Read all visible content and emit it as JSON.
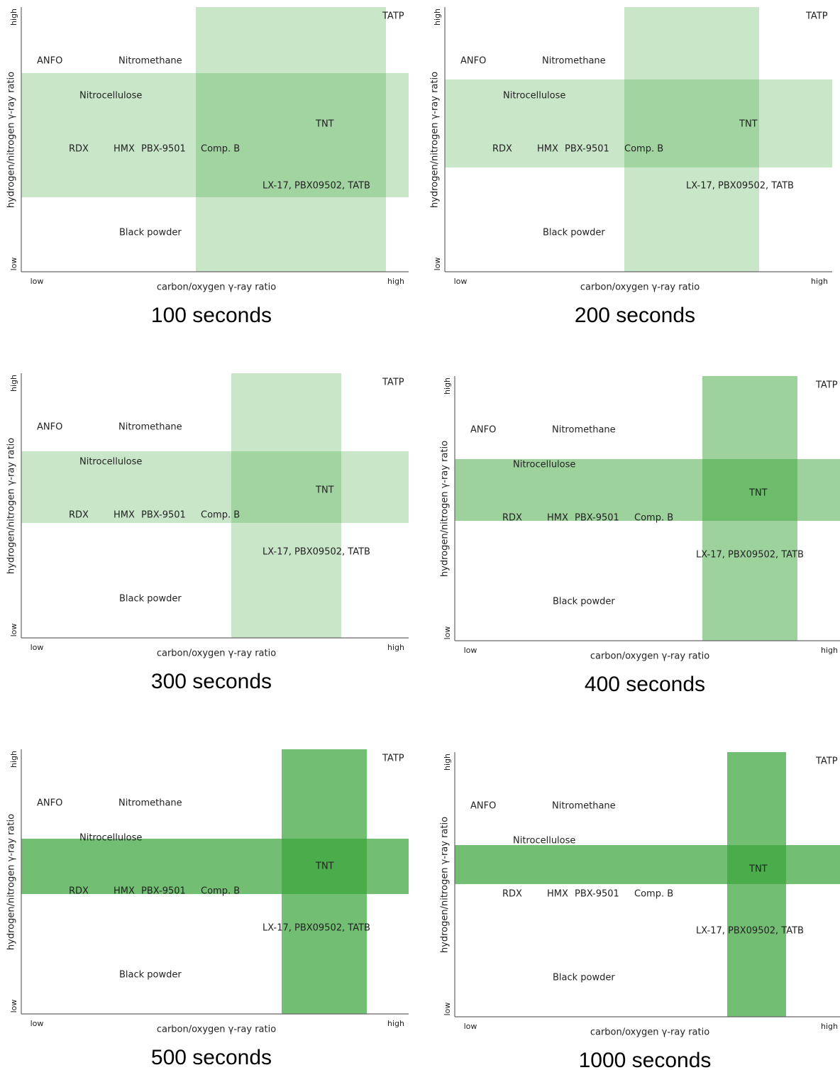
{
  "panels": [
    {
      "caption": "100 seconds",
      "x_axis_label": "carbon/oxygen γ-ray ratio",
      "y_axis_label": "hydrogen/nitrogen γ-ray ratio",
      "x_low": "low",
      "x_high": "high",
      "y_low": "low",
      "y_high": "high",
      "materials": [
        "ANFO",
        "Nitromethane",
        "Nitrocellulose",
        "RDX",
        "HMX",
        "PBX-9501",
        "Comp. B",
        "TNT",
        "LX-17, PBX09502, TATB",
        "Black powder",
        "TATP"
      ]
    },
    {
      "caption": "200 seconds",
      "x_axis_label": "carbon/oxygen γ-ray ratio",
      "y_axis_label": "hydrogen/nitrogen γ-ray ratio",
      "x_low": "low",
      "x_high": "high",
      "y_low": "low",
      "y_high": "high",
      "materials": [
        "ANFO",
        "Nitromethane",
        "Nitrocellulose",
        "RDX",
        "HMX",
        "PBX-9501",
        "Comp. B",
        "TNT",
        "LX-17, PBX09502, TATB",
        "Black powder",
        "TATP"
      ]
    },
    {
      "caption": "300 seconds",
      "x_axis_label": "carbon/oxygen γ-ray ratio",
      "y_axis_label": "hydrogen/nitrogen γ-ray ratio",
      "x_low": "low",
      "x_high": "high",
      "y_low": "low",
      "y_high": "high",
      "materials": [
        "ANFO",
        "Nitromethane",
        "Nitrocellulose",
        "RDX",
        "HMX",
        "PBX-9501",
        "Comp. B",
        "TNT",
        "LX-17, PBX09502, TATB",
        "Black powder",
        "TATP"
      ]
    },
    {
      "caption": "400 seconds",
      "x_axis_label": "carbon/oxygen γ-ray ratio",
      "y_axis_label": "hydrogen/nitrogen γ-ray ratio",
      "x_low": "low",
      "x_high": "high",
      "y_low": "low",
      "y_high": "high",
      "materials": [
        "ANFO",
        "Nitromethane",
        "Nitrocellulose",
        "RDX",
        "HMX",
        "PBX-9501",
        "Comp. B",
        "TNT",
        "LX-17, PBX09502, TATB",
        "Black powder",
        "TATP"
      ]
    },
    {
      "caption": "500 seconds",
      "x_axis_label": "carbon/oxygen γ-ray ratio",
      "y_axis_label": "hydrogen/nitrogen γ-ray ratio",
      "x_low": "low",
      "x_high": "high",
      "y_low": "low",
      "y_high": "high",
      "materials": [
        "ANFO",
        "Nitromethane",
        "Nitrocellulose",
        "RDX",
        "HMX",
        "PBX-9501",
        "Comp. B",
        "TNT",
        "LX-17, PBX09502, TATB",
        "Black powder",
        "TATP"
      ]
    },
    {
      "caption": "1000 seconds",
      "x_axis_label": "carbon/oxygen γ-ray ratio",
      "y_axis_label": "hydrogen/nitrogen γ-ray ratio",
      "x_low": "low",
      "x_high": "high",
      "y_low": "low",
      "y_high": "high",
      "materials": [
        "ANFO",
        "Nitromethane",
        "Nitrocellulose",
        "RDX",
        "HMX",
        "PBX-9501",
        "Comp. B",
        "TNT",
        "LX-17, PBX09502, TATB",
        "Black powder",
        "TATP"
      ]
    }
  ]
}
